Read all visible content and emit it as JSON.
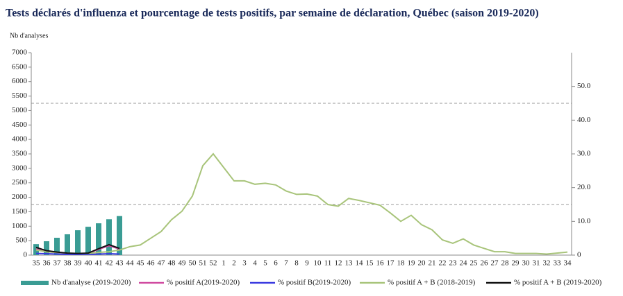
{
  "chart_data": {
    "type": "combo",
    "title": "Tests déclarés d'influenza et pourcentage de tests positifs, par semaine de déclaration, Québec (saison 2019-2020)",
    "y_label": "Nb d'analyses",
    "categories": [
      "35",
      "36",
      "37",
      "38",
      "39",
      "40",
      "41",
      "42",
      "43",
      "44",
      "45",
      "46",
      "47",
      "48",
      "49",
      "50",
      "51",
      "52",
      "1",
      "2",
      "3",
      "4",
      "5",
      "6",
      "7",
      "8",
      "9",
      "10",
      "11",
      "12",
      "13",
      "14",
      "15",
      "16",
      "17",
      "18",
      "19",
      "20",
      "21",
      "22",
      "23",
      "24",
      "25",
      "26",
      "27",
      "28",
      "29",
      "30",
      "31",
      "32",
      "33",
      "34"
    ],
    "ylim": [
      0,
      7000
    ],
    "yticks": [
      0,
      500,
      1000,
      1500,
      2000,
      2500,
      3000,
      3500,
      4000,
      4500,
      5000,
      5500,
      6000,
      6500,
      7000
    ],
    "y2lim": [
      0,
      60
    ],
    "y2ticks": [
      0,
      {
        "value": 10,
        "label": "10.0"
      },
      {
        "value": 20,
        "label": "20.0"
      },
      {
        "value": 30,
        "label": "30.0"
      },
      {
        "value": 40,
        "label": "40.0"
      },
      {
        "value": 50,
        "label": "50.0"
      }
    ],
    "y2grid": [
      15,
      45
    ],
    "series": [
      {
        "name": "Nb d'analyse (2019-2020)",
        "type": "bar",
        "axis": "y",
        "color": "#3a9c94",
        "values": [
          380,
          480,
          600,
          720,
          860,
          980,
          1100,
          1240,
          1350,
          null,
          null,
          null,
          null,
          null,
          null,
          null,
          null,
          null,
          null,
          null,
          null,
          null,
          null,
          null,
          null,
          null,
          null,
          null,
          null,
          null,
          null,
          null,
          null,
          null,
          null,
          null,
          null,
          null,
          null,
          null,
          null,
          null,
          null,
          null,
          null,
          null,
          null,
          null,
          null,
          null,
          null,
          null
        ]
      },
      {
        "name": "% positif A(2019-2020)",
        "type": "line",
        "axis": "y2",
        "color": "#d04aa0",
        "values": [
          1.8,
          1.0,
          0.8,
          0.5,
          0.4,
          0.5,
          1.7,
          2.8,
          1.8,
          null,
          null,
          null,
          null,
          null,
          null,
          null,
          null,
          null,
          null,
          null,
          null,
          null,
          null,
          null,
          null,
          null,
          null,
          null,
          null,
          null,
          null,
          null,
          null,
          null,
          null,
          null,
          null,
          null,
          null,
          null,
          null,
          null,
          null,
          null,
          null,
          null,
          null,
          null,
          null,
          null,
          null,
          null
        ]
      },
      {
        "name": "% positif B(2019-2020)",
        "type": "line",
        "axis": "y2",
        "color": "#3a3ae0",
        "values": [
          0.5,
          0.4,
          0.3,
          0.2,
          0.2,
          0.2,
          0.3,
          0.4,
          0.3,
          null,
          null,
          null,
          null,
          null,
          null,
          null,
          null,
          null,
          null,
          null,
          null,
          null,
          null,
          null,
          null,
          null,
          null,
          null,
          null,
          null,
          null,
          null,
          null,
          null,
          null,
          null,
          null,
          null,
          null,
          null,
          null,
          null,
          null,
          null,
          null,
          null,
          null,
          null,
          null,
          null,
          null,
          null
        ]
      },
      {
        "name": "% positif A + B (2018-2019)",
        "type": "line",
        "axis": "y2",
        "color": "#a8c47a",
        "values": [
          1.5,
          1.0,
          0.8,
          0.6,
          0.5,
          0.5,
          0.8,
          1.0,
          1.5,
          2.5,
          3,
          5,
          7,
          10.5,
          13,
          17.5,
          26.5,
          30,
          26,
          22,
          22,
          21,
          21.3,
          20.8,
          19,
          18,
          18.1,
          17.5,
          15,
          14.5,
          16.8,
          16.2,
          15.5,
          14.8,
          12.5,
          10,
          11.8,
          9,
          7.5,
          4.5,
          3.5,
          4.8,
          3,
          2,
          1,
          1,
          0.5,
          0.5,
          0.5,
          0.3,
          0.6,
          0.9
        ]
      },
      {
        "name": "% positif A + B (2019-2020)",
        "type": "line",
        "axis": "y2",
        "color": "#111111",
        "values": [
          2.3,
          1.3,
          0.9,
          0.6,
          0.5,
          0.6,
          1.9,
          3.1,
          2.0,
          null,
          null,
          null,
          null,
          null,
          null,
          null,
          null,
          null,
          null,
          null,
          null,
          null,
          null,
          null,
          null,
          null,
          null,
          null,
          null,
          null,
          null,
          null,
          null,
          null,
          null,
          null,
          null,
          null,
          null,
          null,
          null,
          null,
          null,
          null,
          null,
          null,
          null,
          null,
          null,
          null,
          null,
          null
        ]
      }
    ]
  }
}
